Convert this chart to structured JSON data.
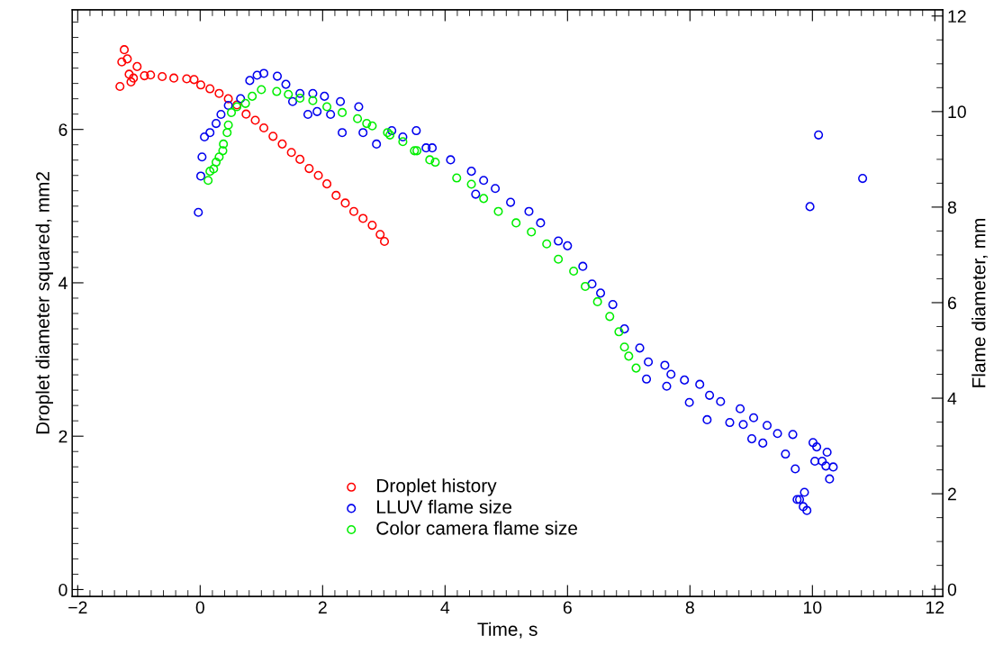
{
  "chart_data": {
    "type": "scatter",
    "xlabel": "Time, s",
    "ylabel": "Droplet diameter squared, mm2",
    "y2label": "Flame diameter, mm",
    "xlim": [
      -2.09,
      12.13
    ],
    "xticks": [
      -2,
      0,
      2,
      4,
      6,
      8,
      10,
      12
    ],
    "ylim": [
      -0.09,
      7.56
    ],
    "yticks": [
      0,
      2,
      4,
      6
    ],
    "y2lim": [
      -0.15,
      12.13
    ],
    "y2ticks": [
      0,
      2,
      4,
      6,
      8,
      10,
      12
    ],
    "marker": "circle",
    "legend": "bottom",
    "grid": false,
    "series": [
      {
        "name": "Droplet history",
        "color": "#ff0000",
        "x": [
          -1.31,
          -1.28,
          -1.24,
          -1.19,
          -1.16,
          -1.13,
          -1.09,
          -1.03,
          -0.91,
          -0.81,
          -0.62,
          -0.43,
          -0.22,
          -0.1,
          0.01,
          0.16,
          0.31,
          0.46,
          0.6,
          0.75,
          0.9,
          1.04,
          1.19,
          1.34,
          1.49,
          1.63,
          1.78,
          1.93,
          2.07,
          2.22,
          2.37,
          2.51,
          2.66,
          2.81,
          2.94,
          3.01
        ],
        "values": [
          6.56,
          6.88,
          7.04,
          6.92,
          6.72,
          6.62,
          6.67,
          6.82,
          6.7,
          6.71,
          6.69,
          6.67,
          6.66,
          6.65,
          6.58,
          6.53,
          6.47,
          6.4,
          6.32,
          6.2,
          6.12,
          6.02,
          5.91,
          5.81,
          5.7,
          5.61,
          5.49,
          5.4,
          5.29,
          5.14,
          5.04,
          4.93,
          4.84,
          4.75,
          4.63,
          4.54
        ]
      },
      {
        "name": "LLUV flame size",
        "color": "#0000ee",
        "axis": "y2",
        "x": [
          -0.03,
          0.01,
          0.03,
          0.07,
          0.16,
          0.26,
          0.34,
          0.46,
          0.66,
          0.81,
          0.93,
          1.04,
          1.26,
          1.4,
          1.51,
          1.63,
          1.76,
          1.84,
          1.91,
          2.03,
          2.13,
          2.29,
          2.32,
          2.59,
          2.66,
          2.88,
          3.13,
          3.31,
          3.53,
          3.69,
          3.79,
          4.09,
          4.43,
          4.5,
          4.63,
          4.82,
          5.07,
          5.37,
          5.56,
          5.85,
          6.0,
          6.25,
          6.4,
          6.54,
          6.74,
          6.93,
          7.18,
          7.32,
          7.29,
          7.59,
          7.62,
          7.69,
          7.91,
          7.99,
          8.16,
          8.28,
          8.32,
          8.5,
          8.65,
          8.82,
          8.87,
          9.04,
          9.01,
          9.19,
          9.26,
          9.43,
          9.56,
          9.68,
          9.72,
          9.75,
          9.79,
          9.87,
          9.85,
          9.91,
          9.96,
          10.01,
          10.07,
          10.04,
          10.1,
          10.16,
          10.24,
          10.22,
          10.34,
          10.28,
          10.82
        ],
        "values": [
          7.89,
          8.65,
          9.05,
          9.47,
          9.56,
          9.75,
          9.94,
          10.13,
          10.27,
          10.65,
          10.76,
          10.8,
          10.74,
          10.57,
          10.21,
          10.38,
          9.94,
          10.38,
          10.0,
          10.32,
          9.94,
          10.21,
          9.56,
          10.1,
          9.56,
          9.32,
          9.6,
          9.47,
          9.6,
          9.24,
          9.24,
          8.99,
          8.75,
          8.27,
          8.56,
          8.39,
          8.1,
          7.91,
          7.67,
          7.29,
          7.19,
          6.76,
          6.39,
          6.2,
          5.96,
          5.45,
          5.05,
          4.76,
          4.4,
          4.69,
          4.25,
          4.5,
          4.38,
          3.91,
          4.29,
          3.55,
          4.06,
          3.93,
          3.49,
          3.78,
          3.45,
          3.59,
          3.15,
          3.06,
          3.43,
          3.26,
          2.83,
          3.24,
          2.52,
          1.88,
          1.88,
          2.03,
          1.73,
          1.65,
          8.01,
          3.07,
          2.98,
          2.68,
          9.51,
          2.68,
          2.87,
          2.58,
          2.56,
          2.31,
          8.6
        ]
      },
      {
        "name": "Color camera flame size",
        "color": "#00ee00",
        "axis": "y2",
        "x": [
          0.13,
          0.16,
          0.22,
          0.26,
          0.31,
          0.37,
          0.38,
          0.44,
          0.46,
          0.51,
          0.6,
          0.74,
          0.85,
          1.0,
          1.25,
          1.44,
          1.63,
          1.84,
          2.07,
          2.32,
          2.57,
          2.72,
          2.81,
          3.06,
          3.1,
          3.31,
          3.5,
          3.54,
          3.75,
          3.84,
          4.19,
          4.43,
          4.63,
          4.87,
          5.16,
          5.41,
          5.66,
          5.85,
          6.1,
          6.29,
          6.49,
          6.69,
          6.84,
          6.93,
          7.0,
          7.12
        ],
        "values": [
          8.56,
          8.75,
          8.8,
          8.94,
          9.05,
          9.18,
          9.32,
          9.56,
          9.72,
          9.98,
          10.1,
          10.17,
          10.32,
          10.46,
          10.42,
          10.36,
          10.28,
          10.23,
          10.1,
          9.98,
          9.85,
          9.75,
          9.7,
          9.56,
          9.51,
          9.37,
          9.18,
          9.18,
          8.99,
          8.94,
          8.61,
          8.48,
          8.18,
          7.91,
          7.67,
          7.48,
          7.23,
          6.91,
          6.66,
          6.34,
          6.02,
          5.71,
          5.39,
          5.07,
          4.88,
          4.63
        ]
      }
    ]
  }
}
